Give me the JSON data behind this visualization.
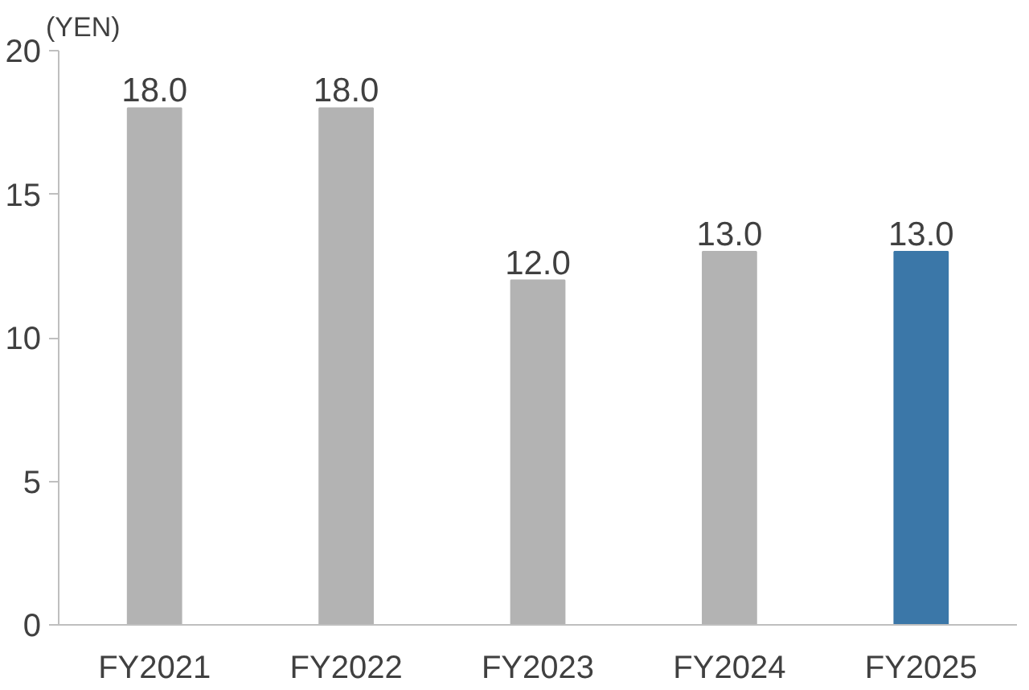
{
  "chart_data": {
    "type": "bar",
    "ylabel": "(YEN)",
    "categories": [
      "FY2021",
      "FY2022",
      "FY2023",
      "FY2024",
      "FY2025"
    ],
    "values": [
      18.0,
      18.0,
      12.0,
      13.0,
      13.0
    ],
    "colors": [
      "#b3b3b3",
      "#b3b3b3",
      "#b3b3b3",
      "#b3b3b3",
      "#3b77a8"
    ],
    "value_labels": [
      "18.0",
      "18.0",
      "12.0",
      "13.0",
      "13.0"
    ],
    "ylim": [
      0,
      20
    ],
    "yticks": [
      0,
      5,
      10,
      15,
      20
    ],
    "grid": false
  }
}
